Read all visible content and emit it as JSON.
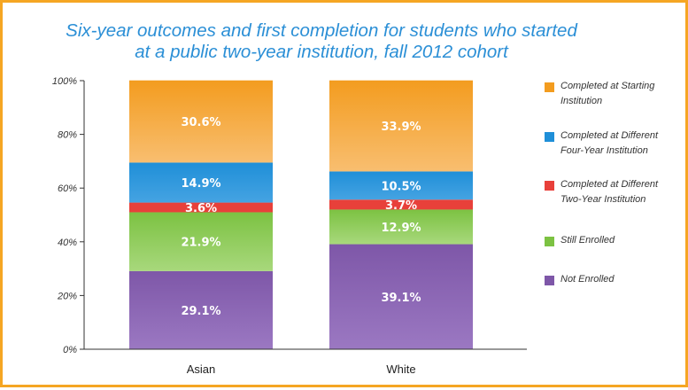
{
  "chart_data": {
    "type": "bar",
    "stacked": true,
    "title_lines": [
      "Six-year outcomes and first completion for students who started",
      "at a public two-year institution, fall 2012 cohort"
    ],
    "categories": [
      "Asian",
      "White"
    ],
    "series": [
      {
        "name": "Not Enrolled",
        "values": [
          29.1,
          39.1
        ],
        "labels": [
          "29.1%",
          "39.1%"
        ],
        "color": "#7e57a8",
        "color_light": "#9b78c2"
      },
      {
        "name": "Still Enrolled",
        "values": [
          21.9,
          12.9
        ],
        "labels": [
          "21.9%",
          "12.9%"
        ],
        "color": "#7cc242",
        "color_light": "#a8d87c"
      },
      {
        "name": "Completed at Different Two-Year Institution",
        "values": [
          3.6,
          3.7
        ],
        "labels": [
          "3.6%",
          "3.7%"
        ],
        "color": "#e8403a",
        "color_light": "#e8403a"
      },
      {
        "name": "Completed at Different Four-Year Institution",
        "values": [
          14.9,
          10.5
        ],
        "labels": [
          "14.9%",
          "10.5%"
        ],
        "color": "#1f8fd8",
        "color_light": "#45a3e2"
      },
      {
        "name": "Completed at Starting Institution",
        "values": [
          30.6,
          33.9
        ],
        "labels": [
          "30.6%",
          "33.9%"
        ],
        "color": "#f39c1f",
        "color_light": "#f8be70"
      }
    ],
    "y_ticks": [
      "0%",
      "20%",
      "40%",
      "60%",
      "80%",
      "100%"
    ],
    "ylim": [
      0,
      100
    ],
    "grid": false,
    "legend_placement": "right"
  },
  "legend": [
    {
      "line1": "Completed at Starting",
      "line2": "Institution",
      "color": "#f39c1f"
    },
    {
      "line1": "Completed at Different",
      "line2": "Four-Year Institution",
      "color": "#1f8fd8"
    },
    {
      "line1": "Completed at Different",
      "line2": "Two-Year Institution",
      "color": "#e8403a"
    },
    {
      "line1": "Still Enrolled",
      "line2": "",
      "color": "#7cc242"
    },
    {
      "line1": "Not Enrolled",
      "line2": "",
      "color": "#7e57a8"
    }
  ]
}
